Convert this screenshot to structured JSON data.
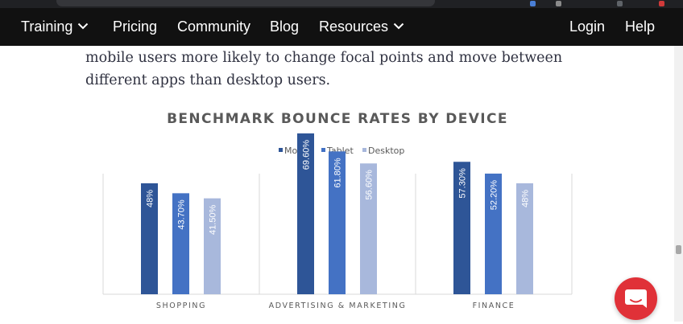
{
  "nav": {
    "items": [
      {
        "label": "Training",
        "dropdown": true
      },
      {
        "label": "Pricing",
        "dropdown": false
      },
      {
        "label": "Community",
        "dropdown": false
      },
      {
        "label": "Blog",
        "dropdown": false
      },
      {
        "label": "Resources",
        "dropdown": true
      },
      {
        "label": "Login",
        "dropdown": false
      },
      {
        "label": "Help",
        "dropdown": false
      }
    ]
  },
  "article": {
    "line1": "mobile users more likely to change focal points and move between",
    "line2": "different apps than desktop users."
  },
  "chat_launcher": {
    "icon": "chat-bubble-icon",
    "color": "#e03138"
  },
  "chart_data": {
    "type": "bar",
    "title": "BENCHMARK BOUNCE RATES BY DEVICE",
    "legend_position": "top",
    "grid": false,
    "categories": [
      "SHOPPING",
      "ADVERTISING & MARKETING",
      "FINANCE"
    ],
    "ylim": [
      0,
      80
    ],
    "series": [
      {
        "name": "Mobile",
        "color": "#2e5597",
        "values": [
          48,
          69.6,
          57.3
        ],
        "labels": [
          "48%",
          "69.60%",
          "57.30%"
        ]
      },
      {
        "name": "Tablet",
        "color": "#4472c4",
        "values": [
          43.7,
          61.8,
          52.2
        ],
        "labels": [
          "43.70%",
          "61.80%",
          "52.20%"
        ]
      },
      {
        "name": "Desktop",
        "color": "#a8b8dc",
        "values": [
          41.5,
          56.6,
          48
        ],
        "labels": [
          "41.50%",
          "56.60%",
          "48%"
        ]
      }
    ]
  }
}
